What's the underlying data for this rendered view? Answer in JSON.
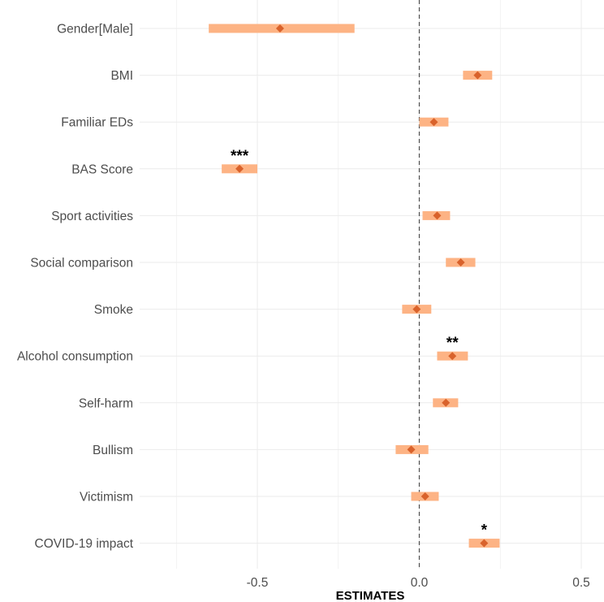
{
  "chart_data": {
    "type": "forest",
    "xlabel": "ESTIMATES",
    "xlim": [
      -0.8,
      0.56
    ],
    "xticks": [
      -0.5,
      0.0,
      0.5
    ],
    "xtick_labels": [
      "-0.5",
      "0.0",
      "0.5"
    ],
    "reference_line": 0.0,
    "colors": {
      "interval": "#fdb384",
      "point": "#d9622b",
      "grid": "#ebebeb",
      "reference": "#555555"
    },
    "rows": [
      {
        "label": "Gender[Male]",
        "estimate": -0.43,
        "lower": -0.65,
        "upper": -0.2,
        "sig": ""
      },
      {
        "label": "BMI",
        "estimate": 0.18,
        "lower": 0.135,
        "upper": 0.225,
        "sig": ""
      },
      {
        "label": "Familiar EDs",
        "estimate": 0.045,
        "lower": 0.0,
        "upper": 0.09,
        "sig": ""
      },
      {
        "label": "BAS Score",
        "estimate": -0.555,
        "lower": -0.61,
        "upper": -0.5,
        "sig": "***"
      },
      {
        "label": "Sport activities",
        "estimate": 0.055,
        "lower": 0.01,
        "upper": 0.095,
        "sig": ""
      },
      {
        "label": "Social comparison",
        "estimate": 0.128,
        "lower": 0.082,
        "upper": 0.173,
        "sig": ""
      },
      {
        "label": "Smoke",
        "estimate": -0.008,
        "lower": -0.053,
        "upper": 0.037,
        "sig": ""
      },
      {
        "label": "Alcohol consumption",
        "estimate": 0.102,
        "lower": 0.055,
        "upper": 0.15,
        "sig": "**"
      },
      {
        "label": "Self-harm",
        "estimate": 0.082,
        "lower": 0.042,
        "upper": 0.12,
        "sig": ""
      },
      {
        "label": "Bullism",
        "estimate": -0.025,
        "lower": -0.073,
        "upper": 0.028,
        "sig": ""
      },
      {
        "label": "Victimism",
        "estimate": 0.018,
        "lower": -0.025,
        "upper": 0.06,
        "sig": ""
      },
      {
        "label": "COVID-19 impact",
        "estimate": 0.2,
        "lower": 0.153,
        "upper": 0.248,
        "sig": "*"
      }
    ]
  }
}
